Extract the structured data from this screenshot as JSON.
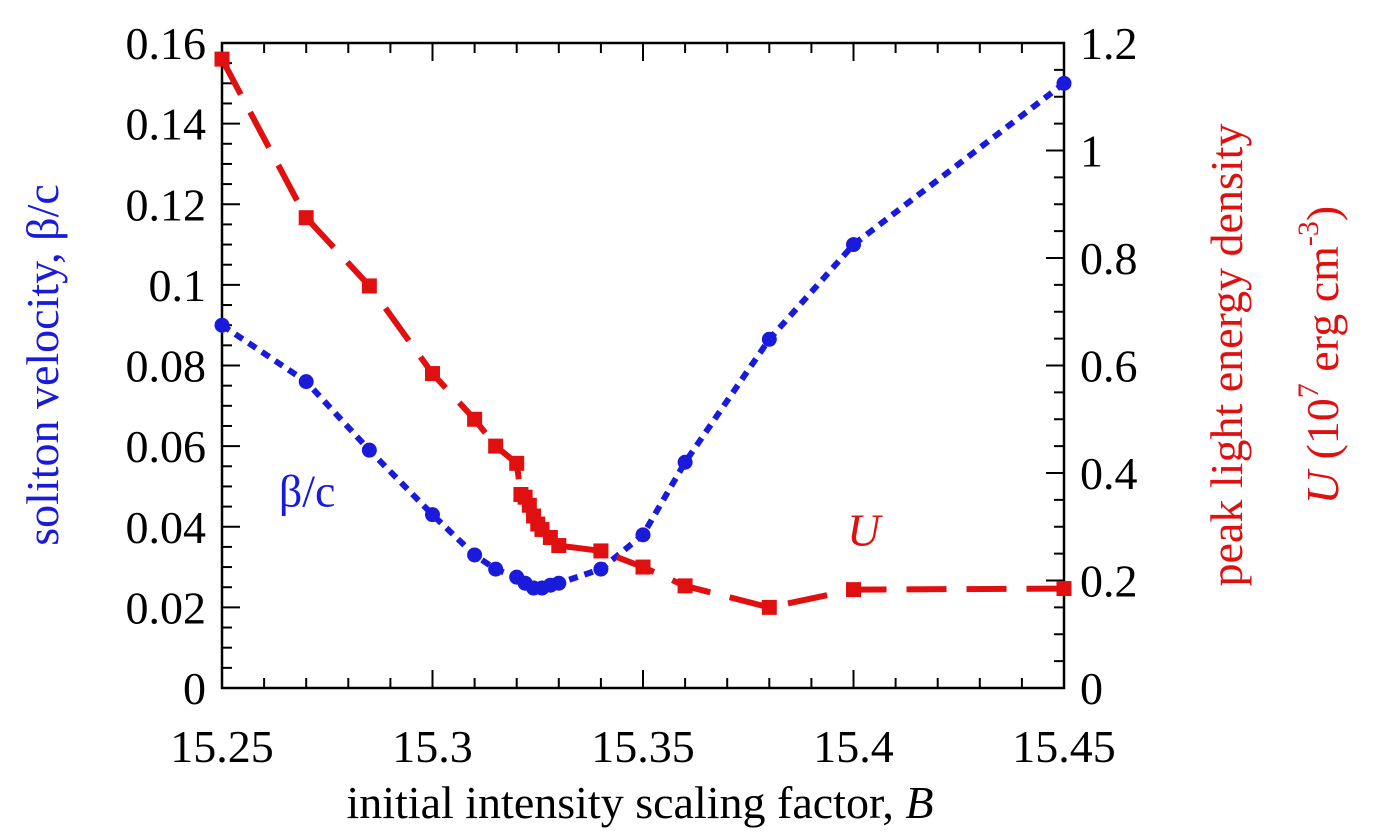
{
  "chart_data": {
    "type": "line",
    "xlabel": "initial intensity scaling factor, ",
    "xlabel_var": "B",
    "xlim": [
      15.25,
      15.45
    ],
    "x_ticks": [
      "15.25",
      "15.3",
      "15.35",
      "15.4",
      "15.45"
    ],
    "x_tick_values": [
      15.25,
      15.3,
      15.35,
      15.4,
      15.45
    ],
    "left_axis": {
      "label": "soliton velocity, β/c",
      "ylim": [
        0,
        0.16
      ],
      "ticks": [
        "0",
        "0.02",
        "0.04",
        "0.06",
        "0.08",
        "0.1",
        "0.12",
        "0.14",
        "0.16"
      ],
      "tick_values": [
        0,
        0.02,
        0.04,
        0.06,
        0.08,
        0.1,
        0.12,
        0.14,
        0.16
      ],
      "color": "#1a1adb"
    },
    "right_axis": {
      "label_line1": "peak light energy density",
      "label_line2_var": "U",
      "label_line2_text": " (10",
      "label_line2_exp1": "7",
      "label_line2_mid": " erg cm",
      "label_line2_exp2": "-3",
      "label_line2_end": ")",
      "ylim": [
        0,
        1.2
      ],
      "ticks": [
        "0",
        "0.2",
        "0.4",
        "0.6",
        "0.8",
        "1",
        "1.2"
      ],
      "tick_values": [
        0,
        0.2,
        0.4,
        0.6,
        0.8,
        1.0,
        1.2
      ],
      "color": "#e01010"
    },
    "series": [
      {
        "name": "β/c",
        "axis": "left",
        "marker": "circle",
        "line_style": "dotted",
        "color": "#1a1adb",
        "label_at": [
          15.2635,
          0.045
        ],
        "points": [
          [
            15.25,
            0.09
          ],
          [
            15.27,
            0.076
          ],
          [
            15.285,
            0.059
          ],
          [
            15.3,
            0.043
          ],
          [
            15.31,
            0.033
          ],
          [
            15.315,
            0.0295
          ],
          [
            15.32,
            0.0275
          ],
          [
            15.322,
            0.026
          ],
          [
            15.324,
            0.0248
          ],
          [
            15.326,
            0.0248
          ],
          [
            15.328,
            0.0255
          ],
          [
            15.33,
            0.026
          ],
          [
            15.34,
            0.0295
          ],
          [
            15.35,
            0.038
          ],
          [
            15.36,
            0.056
          ],
          [
            15.38,
            0.0865
          ],
          [
            15.4,
            0.11
          ],
          [
            15.45,
            0.15
          ]
        ]
      },
      {
        "name": "U",
        "axis": "right",
        "marker": "square",
        "line_style": "dashed",
        "color": "#e01010",
        "label_at": [
          15.3985,
          0.265
        ],
        "points": [
          [
            15.25,
            1.17
          ],
          [
            15.27,
            0.875
          ],
          [
            15.285,
            0.748
          ],
          [
            15.3,
            0.585
          ],
          [
            15.31,
            0.5
          ],
          [
            15.315,
            0.45
          ],
          [
            15.32,
            0.418
          ],
          [
            15.321,
            0.36
          ],
          [
            15.322,
            0.355
          ],
          [
            15.323,
            0.34
          ],
          [
            15.324,
            0.32
          ],
          [
            15.325,
            0.305
          ],
          [
            15.326,
            0.295
          ],
          [
            15.328,
            0.28
          ],
          [
            15.33,
            0.265
          ],
          [
            15.34,
            0.255
          ],
          [
            15.35,
            0.225
          ],
          [
            15.36,
            0.19
          ],
          [
            15.38,
            0.15
          ],
          [
            15.4,
            0.183
          ],
          [
            15.45,
            0.185
          ]
        ]
      }
    ]
  }
}
